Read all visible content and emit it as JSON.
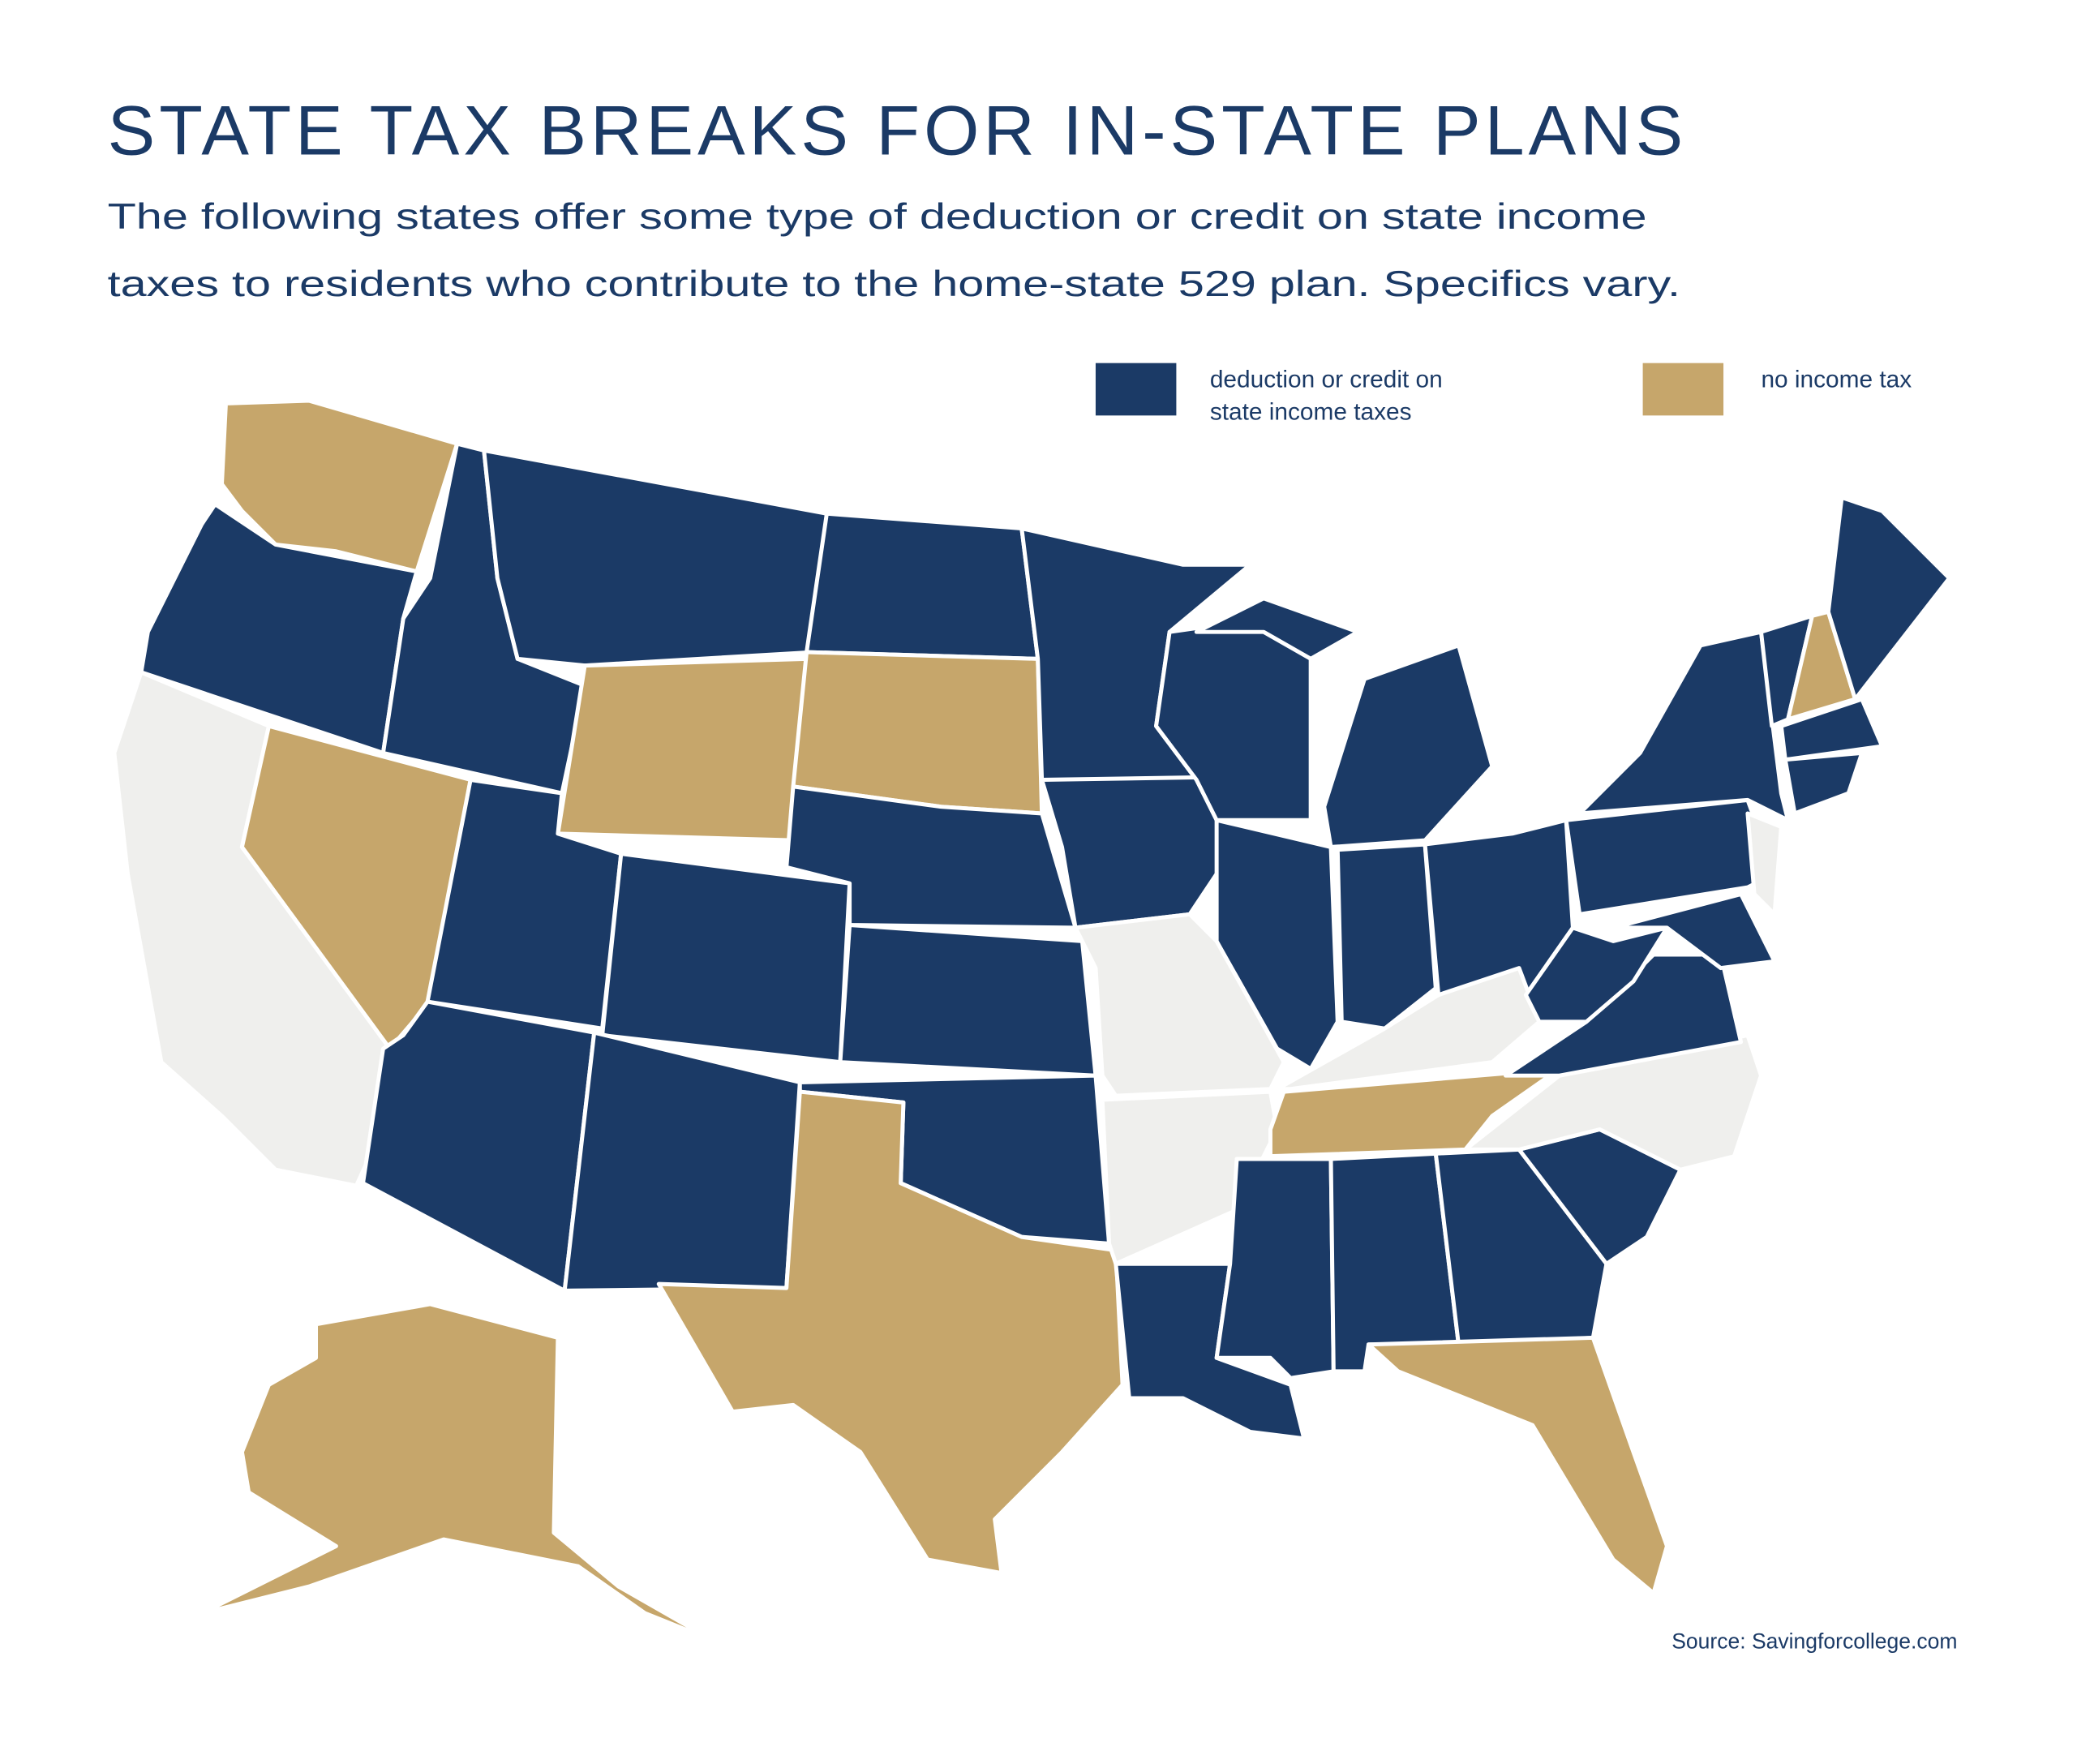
{
  "title": "STATE TAX BREAKS FOR IN-STATE PLANS",
  "subtitle_lines": [
    "The following states offer some type of deduction or credit on state income",
    "taxes to residents who contribute to the home-state 529 plan. Specifics vary."
  ],
  "legend": [
    {
      "label_lines": [
        "deduction or credit on",
        "state income taxes"
      ],
      "color": "#1b3a66"
    },
    {
      "label_lines": [
        "no income tax"
      ],
      "color": "#c6a66b"
    }
  ],
  "source": "Source: Savingforcollege.com"
}
